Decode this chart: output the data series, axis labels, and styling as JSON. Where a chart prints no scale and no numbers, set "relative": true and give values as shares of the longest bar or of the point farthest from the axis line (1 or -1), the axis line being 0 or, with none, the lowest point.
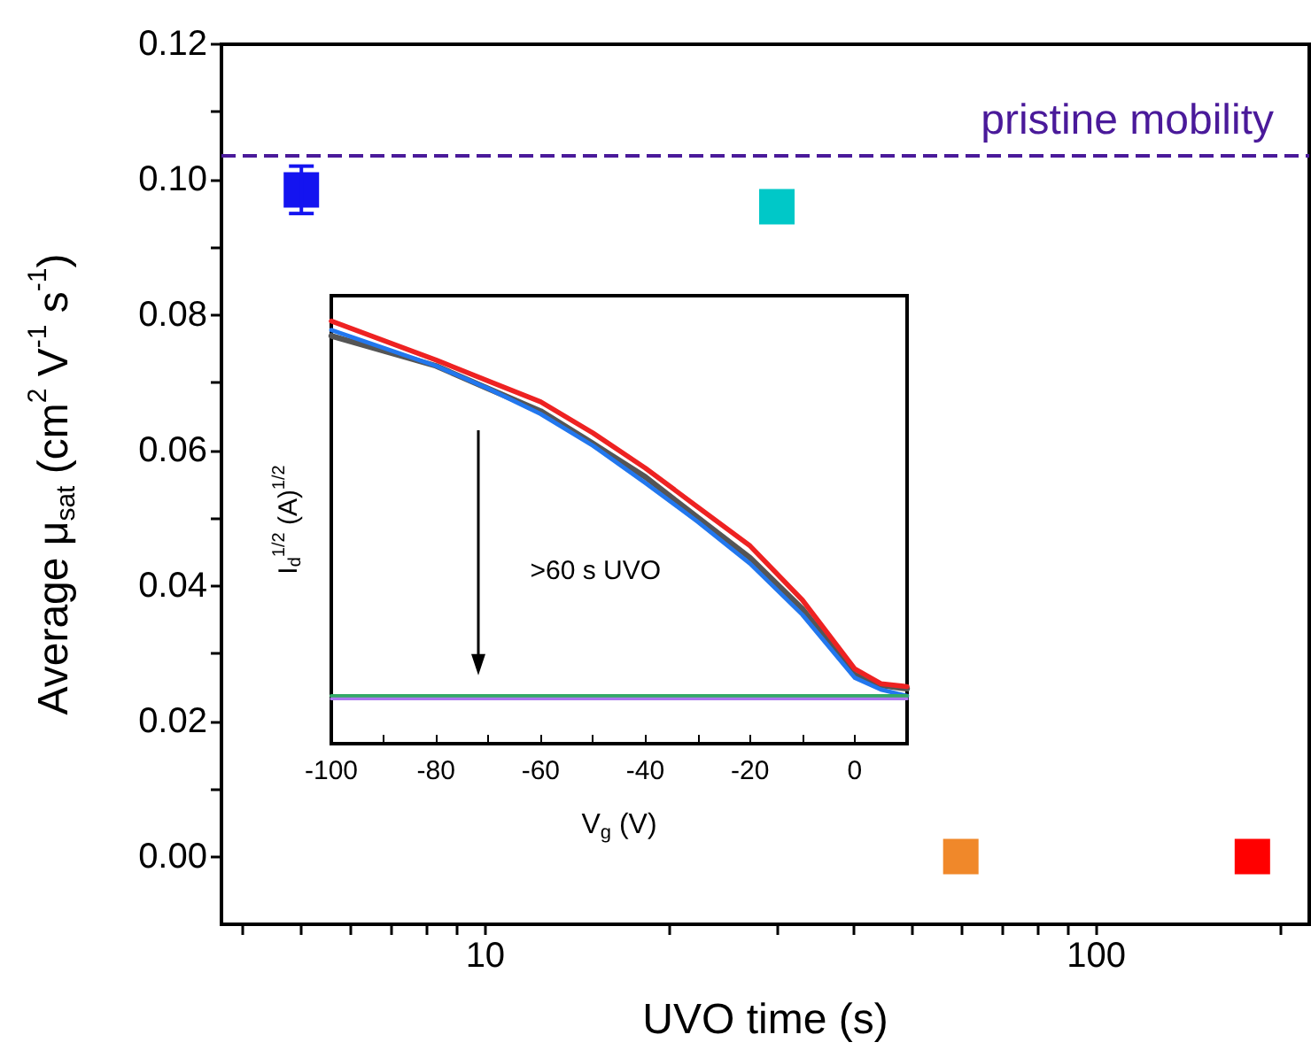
{
  "chart_data": [
    {
      "type": "scatter",
      "xlabel": "UVO time (s)",
      "ylabel": "Average μ$_{sat}$ (cm$^{2}$ V$^{-1}$ s$^{-1}$)",
      "x": [
        5,
        30,
        60,
        180
      ],
      "values": [
        0.0985,
        0.096,
        0,
        0
      ],
      "colors": [
        "#1414f0",
        "#00c8c8",
        "#f0882a",
        "#ff0000"
      ],
      "errors": [
        [
          0.095,
          0.102
        ],
        null,
        null,
        null
      ],
      "marker": "square",
      "log": "x",
      "grid": false,
      "xlim": [
        3.7,
        223
      ],
      "ylim": [
        -0.01,
        0.12
      ],
      "xticks": [
        {
          "value": 4,
          "label": null
        },
        {
          "value": 5,
          "label": null
        },
        {
          "value": 6,
          "label": null
        },
        {
          "value": 7,
          "label": null
        },
        {
          "value": 8,
          "label": null
        },
        {
          "value": 9,
          "label": null
        },
        10,
        {
          "value": 20,
          "label": null
        },
        {
          "value": 30,
          "label": null
        },
        {
          "value": 40,
          "label": null
        },
        {
          "value": 50,
          "label": null
        },
        {
          "value": 60,
          "label": null
        },
        {
          "value": 70,
          "label": null
        },
        {
          "value": 80,
          "label": null
        },
        {
          "value": 90,
          "label": null
        },
        100,
        {
          "value": 200,
          "label": null
        }
      ],
      "yticks": [
        {
          "value": 0,
          "label": "0.00"
        },
        {
          "value": 0.01,
          "label": null
        },
        {
          "value": 0.02,
          "label": "0.02"
        },
        {
          "value": 0.03,
          "label": null
        },
        {
          "value": 0.04,
          "label": "0.04"
        },
        {
          "value": 0.05,
          "label": null
        },
        {
          "value": 0.06,
          "label": "0.06"
        },
        {
          "value": 0.07,
          "label": null
        },
        {
          "value": 0.08,
          "label": "0.08"
        },
        {
          "value": 0.09,
          "label": null
        },
        {
          "value": 0.1,
          "label": "0.10"
        },
        {
          "value": 0.11,
          "label": null
        },
        {
          "value": 0.12,
          "label": "0.12"
        }
      ],
      "ref_lines": [
        {
          "axis": "y",
          "value": 0.1035,
          "label": "pristine mobility",
          "color": "#4a1a9a",
          "line_style": "dashed"
        }
      ]
    },
    {
      "type": "line",
      "xlabel": "V$_{g}$ (V)",
      "ylabel": "I$_{d}$$^{1/2}$ (A)$^{1/2}$",
      "annotations": [
        ">60 s UVO"
      ],
      "relative": true,
      "marker": "none",
      "line_style": "solid",
      "grid": false,
      "xlim": [
        -100,
        10
      ],
      "xticks": [
        -100,
        {
          "value": -90,
          "label": null
        },
        -80,
        {
          "value": -70,
          "label": null
        },
        -60,
        {
          "value": -50,
          "label": null
        },
        -40,
        {
          "value": -30,
          "label": null
        },
        -20,
        {
          "value": -10,
          "label": null
        },
        0
      ],
      "series": [
        {
          "color": "#555555",
          "x": [
            -100,
            -80,
            -70,
            -60,
            -50,
            -40,
            -30,
            -20,
            -10,
            0,
            5,
            10
          ],
          "values": [
            0.965,
            0.894,
            0.84,
            0.787,
            0.71,
            0.631,
            0.535,
            0.44,
            0.319,
            0.163,
            0.138,
            0.13
          ]
        },
        {
          "color": "#ee2222",
          "x": [
            -100,
            -80,
            -70,
            -60,
            -50,
            -40,
            -30,
            -20,
            -10,
            0,
            5,
            10
          ],
          "values": [
            1,
            0.908,
            0.858,
            0.809,
            0.735,
            0.652,
            0.56,
            0.468,
            0.34,
            0.177,
            0.142,
            0.135
          ]
        },
        {
          "color": "#2277ee",
          "x": [
            -100,
            -80,
            -70,
            -60,
            -50,
            -40,
            -30,
            -20,
            -10,
            0,
            5,
            10
          ],
          "values": [
            0.979,
            0.894,
            0.84,
            0.78,
            0.705,
            0.617,
            0.525,
            0.426,
            0.305,
            0.156,
            0.128,
            0.113
          ]
        },
        {
          "color": "#33aa66",
          "x": [
            -100,
            10
          ],
          "values": [
            0.113,
            0.113
          ]
        },
        {
          "color": "#aa77ee",
          "x": [
            -100,
            10
          ],
          "values": [
            0.106,
            0.106
          ]
        }
      ]
    }
  ]
}
